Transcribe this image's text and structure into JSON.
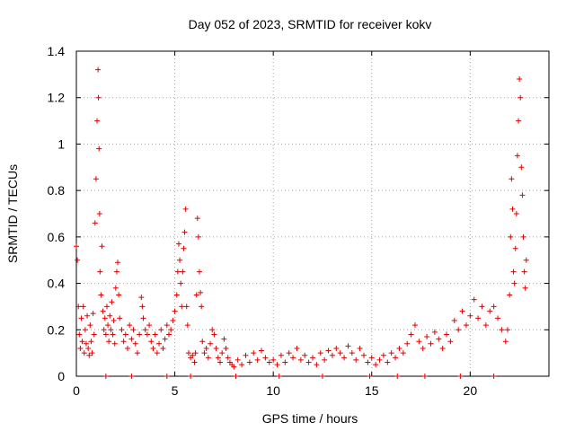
{
  "chart_data": {
    "type": "scatter",
    "title": "Day 052 of 2023, SRMTID for receiver kokv",
    "xlabel": "GPS time / hours",
    "ylabel": "SRMTID / TECUs",
    "xlim": [
      0,
      24
    ],
    "ylim": [
      0,
      1.4
    ],
    "xticks": [
      0,
      5,
      10,
      15,
      20
    ],
    "yticks": [
      0,
      0.2,
      0.4,
      0.6,
      0.8,
      1,
      1.2,
      1.4
    ],
    "xtick_labels": [
      "0",
      "5",
      "10",
      "15",
      "20"
    ],
    "ytick_labels": [
      "0",
      "0.2",
      "0.4",
      "0.6",
      "0.8",
      "1",
      "1.2",
      "1.4"
    ],
    "grid": true,
    "marker": "+",
    "color": "#e00000",
    "series": [
      {
        "name": "kokv",
        "points": [
          [
            0.0,
            0.56
          ],
          [
            0.05,
            0.5
          ],
          [
            0.1,
            0.3
          ],
          [
            0.15,
            0.18
          ],
          [
            0.2,
            0.12
          ],
          [
            0.25,
            0.25
          ],
          [
            0.3,
            0.15
          ],
          [
            0.35,
            0.3
          ],
          [
            0.4,
            0.1
          ],
          [
            0.45,
            0.2
          ],
          [
            0.5,
            0.14
          ],
          [
            0.55,
            0.26
          ],
          [
            0.6,
            0.12
          ],
          [
            0.65,
            0.09
          ],
          [
            0.7,
            0.22
          ],
          [
            0.75,
            0.15
          ],
          [
            0.8,
            0.1
          ],
          [
            0.85,
            0.27
          ],
          [
            0.9,
            0.18
          ],
          [
            0.95,
            0.66
          ],
          [
            1.0,
            0.85
          ],
          [
            1.05,
            1.1
          ],
          [
            1.1,
            1.32
          ],
          [
            1.12,
            1.2
          ],
          [
            1.15,
            0.98
          ],
          [
            1.18,
            0.7
          ],
          [
            1.2,
            0.45
          ],
          [
            1.25,
            0.35
          ],
          [
            1.3,
            0.56
          ],
          [
            1.35,
            0.28
          ],
          [
            1.4,
            0.2
          ],
          [
            1.45,
            0.25
          ],
          [
            1.5,
            0.18
          ],
          [
            1.55,
            0.3
          ],
          [
            1.6,
            0.22
          ],
          [
            1.65,
            0.15
          ],
          [
            1.7,
            0.26
          ],
          [
            1.75,
            0.2
          ],
          [
            1.8,
            0.32
          ],
          [
            1.85,
            0.18
          ],
          [
            1.9,
            0.24
          ],
          [
            1.95,
            0.14
          ],
          [
            2.0,
            0.38
          ],
          [
            2.05,
            0.45
          ],
          [
            2.1,
            0.49
          ],
          [
            2.15,
            0.35
          ],
          [
            2.2,
            0.25
          ],
          [
            2.3,
            0.2
          ],
          [
            2.4,
            0.15
          ],
          [
            2.5,
            0.18
          ],
          [
            2.6,
            0.12
          ],
          [
            2.7,
            0.22
          ],
          [
            2.8,
            0.16
          ],
          [
            2.9,
            0.2
          ],
          [
            3.0,
            0.14
          ],
          [
            3.1,
            0.1
          ],
          [
            3.2,
            0.18
          ],
          [
            3.3,
            0.34
          ],
          [
            3.35,
            0.3
          ],
          [
            3.4,
            0.25
          ],
          [
            3.5,
            0.2
          ],
          [
            3.6,
            0.18
          ],
          [
            3.7,
            0.22
          ],
          [
            3.8,
            0.15
          ],
          [
            3.9,
            0.12
          ],
          [
            4.0,
            0.18
          ],
          [
            4.1,
            0.1
          ],
          [
            4.2,
            0.14
          ],
          [
            4.3,
            0.2
          ],
          [
            4.4,
            0.12
          ],
          [
            4.5,
            0.16
          ],
          [
            4.6,
            0.22
          ],
          [
            4.7,
            0.18
          ],
          [
            4.8,
            0.2
          ],
          [
            4.9,
            0.24
          ],
          [
            5.0,
            0.28
          ],
          [
            5.1,
            0.35
          ],
          [
            5.15,
            0.45
          ],
          [
            5.2,
            0.57
          ],
          [
            5.25,
            0.5
          ],
          [
            5.3,
            0.4
          ],
          [
            5.35,
            0.3
          ],
          [
            5.4,
            0.45
          ],
          [
            5.45,
            0.55
          ],
          [
            5.5,
            0.62
          ],
          [
            5.55,
            0.72
          ],
          [
            5.6,
            0.3
          ],
          [
            5.65,
            0.22
          ],
          [
            5.7,
            0.1
          ],
          [
            5.8,
            0.08
          ],
          [
            5.9,
            0.09
          ],
          [
            6.0,
            0.06
          ],
          [
            6.05,
            0.1
          ],
          [
            6.1,
            0.35
          ],
          [
            6.15,
            0.68
          ],
          [
            6.2,
            0.6
          ],
          [
            6.25,
            0.45
          ],
          [
            6.3,
            0.36
          ],
          [
            6.35,
            0.3
          ],
          [
            6.4,
            0.15
          ],
          [
            6.5,
            0.1
          ],
          [
            6.6,
            0.12
          ],
          [
            6.7,
            0.08
          ],
          [
            6.8,
            0.14
          ],
          [
            6.9,
            0.2
          ],
          [
            7.0,
            0.18
          ],
          [
            7.1,
            0.12
          ],
          [
            7.2,
            0.08
          ],
          [
            7.3,
            0.06
          ],
          [
            7.4,
            0.1
          ],
          [
            7.5,
            0.16
          ],
          [
            7.6,
            0.12
          ],
          [
            7.7,
            0.08
          ],
          [
            7.8,
            0.06
          ],
          [
            7.9,
            0.05
          ],
          [
            8.0,
            0.04
          ],
          [
            8.2,
            0.07
          ],
          [
            8.4,
            0.05
          ],
          [
            8.6,
            0.09
          ],
          [
            8.8,
            0.06
          ],
          [
            9.0,
            0.1
          ],
          [
            9.2,
            0.07
          ],
          [
            9.4,
            0.11
          ],
          [
            9.6,
            0.08
          ],
          [
            9.8,
            0.06
          ],
          [
            10.0,
            0.07
          ],
          [
            10.2,
            0.05
          ],
          [
            10.4,
            0.09
          ],
          [
            10.6,
            0.06
          ],
          [
            10.8,
            0.1
          ],
          [
            11.0,
            0.08
          ],
          [
            11.2,
            0.12
          ],
          [
            11.4,
            0.07
          ],
          [
            11.6,
            0.09
          ],
          [
            11.8,
            0.06
          ],
          [
            12.0,
            0.08
          ],
          [
            12.2,
            0.05
          ],
          [
            12.4,
            0.1
          ],
          [
            12.6,
            0.07
          ],
          [
            12.8,
            0.11
          ],
          [
            13.0,
            0.09
          ],
          [
            13.2,
            0.12
          ],
          [
            13.4,
            0.1
          ],
          [
            13.6,
            0.08
          ],
          [
            13.8,
            0.13
          ],
          [
            14.0,
            0.1
          ],
          [
            14.2,
            0.07
          ],
          [
            14.4,
            0.12
          ],
          [
            14.6,
            0.09
          ],
          [
            14.8,
            0.06
          ],
          [
            15.0,
            0.08
          ],
          [
            15.2,
            0.05
          ],
          [
            15.4,
            0.07
          ],
          [
            15.6,
            0.09
          ],
          [
            15.8,
            0.06
          ],
          [
            16.0,
            0.1
          ],
          [
            16.2,
            0.08
          ],
          [
            16.4,
            0.12
          ],
          [
            16.6,
            0.1
          ],
          [
            16.8,
            0.14
          ],
          [
            17.0,
            0.18
          ],
          [
            17.2,
            0.22
          ],
          [
            17.4,
            0.15
          ],
          [
            17.6,
            0.12
          ],
          [
            17.8,
            0.17
          ],
          [
            18.0,
            0.14
          ],
          [
            18.2,
            0.19
          ],
          [
            18.4,
            0.16
          ],
          [
            18.6,
            0.12
          ],
          [
            18.8,
            0.18
          ],
          [
            19.0,
            0.15
          ],
          [
            19.2,
            0.24
          ],
          [
            19.4,
            0.2
          ],
          [
            19.6,
            0.28
          ],
          [
            19.8,
            0.22
          ],
          [
            20.0,
            0.26
          ],
          [
            20.2,
            0.33
          ],
          [
            20.4,
            0.25
          ],
          [
            20.6,
            0.3
          ],
          [
            20.8,
            0.22
          ],
          [
            21.0,
            0.28
          ],
          [
            21.2,
            0.3
          ],
          [
            21.4,
            0.25
          ],
          [
            21.6,
            0.2
          ],
          [
            21.8,
            0.15
          ],
          [
            21.9,
            0.2
          ],
          [
            22.0,
            0.35
          ],
          [
            22.05,
            0.6
          ],
          [
            22.1,
            0.85
          ],
          [
            22.15,
            0.72
          ],
          [
            22.2,
            0.45
          ],
          [
            22.25,
            0.4
          ],
          [
            22.3,
            0.55
          ],
          [
            22.35,
            0.7
          ],
          [
            22.4,
            0.95
          ],
          [
            22.45,
            1.1
          ],
          [
            22.5,
            1.28
          ],
          [
            22.55,
            1.2
          ],
          [
            22.6,
            0.9
          ],
          [
            22.65,
            0.78
          ],
          [
            22.7,
            0.6
          ],
          [
            22.75,
            0.45
          ],
          [
            22.8,
            0.38
          ],
          [
            22.85,
            0.5
          ],
          [
            1.5,
            0.0
          ],
          [
            2.8,
            0.0
          ],
          [
            4.6,
            0.0
          ],
          [
            5.8,
            0.0
          ],
          [
            8.1,
            0.0
          ],
          [
            10.3,
            0.0
          ],
          [
            12.5,
            0.0
          ],
          [
            14.9,
            0.0
          ],
          [
            16.3,
            0.0
          ],
          [
            17.7,
            0.0
          ],
          [
            19.5,
            0.0
          ],
          [
            21.2,
            0.0
          ]
        ]
      }
    ]
  }
}
